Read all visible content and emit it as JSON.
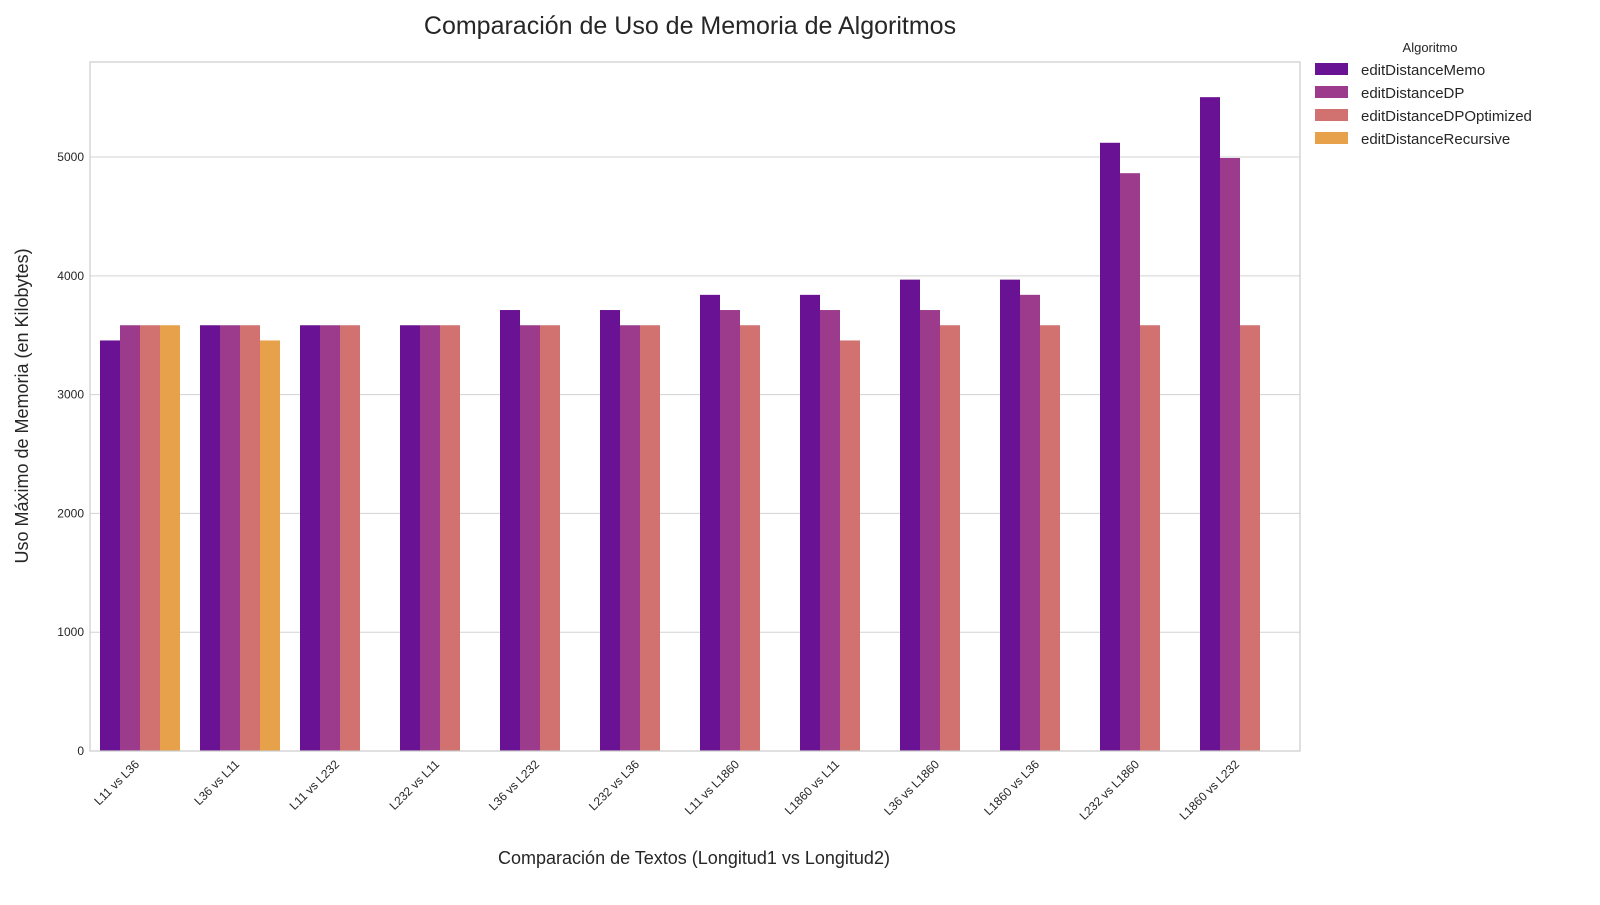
{
  "chart_data": {
    "type": "bar",
    "title": "Comparación de Uso de Memoria de Algoritmos",
    "xlabel": "Comparación de Textos (Longitud1 vs Longitud2)",
    "ylabel": "Uso Máximo de Memoria (en Kilobytes)",
    "ylim": [
      0,
      5800
    ],
    "yticks": [
      0,
      1000,
      2000,
      3000,
      4000,
      5000
    ],
    "grid": true,
    "legend": {
      "title": "Algoritmo",
      "placement": "outside-top-right"
    },
    "categories": [
      "L11 vs L36",
      "L36 vs L11",
      "L11 vs L232",
      "L232 vs L11",
      "L36 vs L232",
      "L232 vs L36",
      "L11 vs L1860",
      "L1860 vs L11",
      "L36 vs L1860",
      "L1860 vs L36",
      "L232 vs L1860",
      "L1860 vs L232"
    ],
    "series": [
      {
        "name": "editDistanceMemo",
        "color": "#6a1294",
        "values": [
          3456,
          3584,
          3584,
          3584,
          3712,
          3712,
          3840,
          3840,
          3968,
          3968,
          5120,
          5504
        ]
      },
      {
        "name": "editDistanceDP",
        "color": "#9c3a8c",
        "values": [
          3584,
          3584,
          3584,
          3584,
          3584,
          3584,
          3712,
          3712,
          3712,
          3840,
          4864,
          4992
        ]
      },
      {
        "name": "editDistanceDPOptimized",
        "color": "#d17170",
        "values": [
          3584,
          3584,
          3584,
          3584,
          3584,
          3584,
          3584,
          3456,
          3584,
          3584,
          3584,
          3584
        ]
      },
      {
        "name": "editDistanceRecursive",
        "color": "#e6a14a",
        "values": [
          3584,
          3456,
          null,
          null,
          null,
          null,
          null,
          null,
          null,
          null,
          null,
          null
        ]
      }
    ]
  }
}
